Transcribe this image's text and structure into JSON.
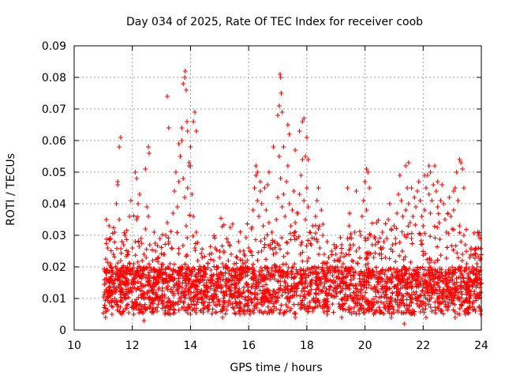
{
  "chart_data": {
    "type": "scatter",
    "title": "Day 034 of 2025, Rate Of TEC Index for receiver coob",
    "xlabel": "GPS time / hours",
    "ylabel": "ROTI / TECUs",
    "xlim": [
      10,
      24
    ],
    "ylim": [
      0,
      0.09
    ],
    "xticks": [
      10,
      12,
      14,
      16,
      18,
      20,
      22,
      24
    ],
    "xtick_labels": [
      "10",
      "12",
      "14",
      "16",
      "18",
      "20",
      "22",
      "24"
    ],
    "yticks": [
      0,
      0.01,
      0.02,
      0.03,
      0.04,
      0.05,
      0.06,
      0.07,
      0.08,
      0.09
    ],
    "ytick_labels": [
      "0",
      "0.01",
      "0.02",
      "0.03",
      "0.04",
      "0.05",
      "0.06",
      "0.07",
      "0.08",
      "0.09"
    ],
    "grid": true,
    "marker": "plus",
    "marker_color": "#ff0000",
    "series": [
      {
        "name": "ROTI",
        "color": "#ff0000",
        "x": [
          11.05,
          11.1,
          11.15,
          11.2,
          11.25,
          11.3,
          11.35,
          11.4,
          11.45,
          11.5,
          11.55,
          11.6,
          11.65,
          11.7,
          11.75,
          11.8,
          11.85,
          11.9,
          11.95,
          12.0,
          12.05,
          12.1,
          12.15,
          12.2,
          12.25,
          12.3,
          12.35,
          12.4,
          12.45,
          12.5,
          12.55,
          12.6,
          12.65,
          12.7,
          12.75,
          12.8,
          12.85,
          12.9,
          12.95,
          13.0,
          13.05,
          13.1,
          13.15,
          13.2,
          13.25,
          13.3,
          13.35,
          13.4,
          13.45,
          13.5,
          13.55,
          13.6,
          13.65,
          13.7,
          13.75,
          13.8,
          13.85,
          13.9,
          13.95,
          14.0,
          14.05,
          14.1,
          14.15,
          14.2,
          14.25,
          14.3,
          14.35,
          14.4,
          14.45,
          14.5,
          14.55,
          14.6,
          14.65,
          14.7,
          14.75,
          14.8,
          14.85,
          14.9,
          14.95,
          15.0,
          15.05,
          15.1,
          15.15,
          15.2,
          15.25,
          15.3,
          15.35,
          15.4,
          15.45,
          15.5,
          15.55,
          15.6,
          15.65,
          15.7,
          15.75,
          15.8,
          15.85,
          15.9,
          15.95,
          16.0,
          16.05,
          16.1,
          16.15,
          16.2,
          16.25,
          16.3,
          16.35,
          16.4,
          16.45,
          16.5,
          16.55,
          16.6,
          16.65,
          16.7,
          16.75,
          16.8,
          16.85,
          16.9,
          16.95,
          17.0,
          17.05,
          17.1,
          17.15,
          17.2,
          17.25,
          17.3,
          17.35,
          17.4,
          17.45,
          17.5,
          17.55,
          17.6,
          17.65,
          17.7,
          17.75,
          17.8,
          17.85,
          17.9,
          17.95,
          18.0,
          18.05,
          18.1,
          18.15,
          18.2,
          18.25,
          18.3,
          18.35,
          18.4,
          18.45,
          18.5,
          18.55,
          18.6,
          18.65,
          18.7,
          18.75,
          18.8,
          18.85,
          18.9,
          18.95,
          19.0,
          19.05,
          19.1,
          19.15,
          19.2,
          19.25,
          19.3,
          19.35,
          19.4,
          19.45,
          19.5,
          19.55,
          19.6,
          19.65,
          19.7,
          19.75,
          19.8,
          19.85,
          19.9,
          19.95,
          20.0,
          20.05,
          20.1,
          20.15,
          20.2,
          20.25,
          20.3,
          20.35,
          20.4,
          20.45,
          20.5,
          20.55,
          20.6,
          20.65,
          20.7,
          20.75,
          20.8,
          20.85,
          20.9,
          20.95,
          21.0,
          21.05,
          21.1,
          21.15,
          21.2,
          21.25,
          21.3,
          21.35,
          21.4,
          21.45,
          21.5,
          21.55,
          21.6,
          21.65,
          21.7,
          21.75,
          21.8,
          21.85,
          21.9,
          21.95,
          22.0,
          22.05,
          22.1,
          22.15,
          22.2,
          22.25,
          22.3,
          22.35,
          22.4,
          22.45,
          22.5,
          22.55,
          22.6,
          22.65,
          22.7,
          22.75,
          22.8,
          22.85,
          22.9,
          22.95,
          23.0,
          23.05,
          23.1,
          23.15,
          23.2,
          23.25,
          23.3,
          23.35,
          23.4,
          23.45,
          23.5,
          23.55,
          23.6,
          23.65,
          23.7,
          23.75,
          23.8,
          23.85,
          23.9,
          23.95,
          11.5,
          11.6,
          11.55,
          12.1,
          12.15,
          12.45,
          12.55,
          12.58,
          13.2,
          13.25,
          13.6,
          13.7,
          13.75,
          13.8,
          13.82,
          13.85,
          13.88,
          13.9,
          13.95,
          14.0,
          14.1,
          14.15,
          14.2,
          16.25,
          16.3,
          16.4,
          16.55,
          16.7,
          16.85,
          17.0,
          17.05,
          17.08,
          17.1,
          17.12,
          17.15,
          17.2,
          17.35,
          17.4,
          17.6,
          17.75,
          17.85,
          17.9,
          17.95,
          18.0,
          18.05,
          18.4,
          19.4,
          19.7,
          20.05,
          20.1,
          20.15,
          21.4,
          21.5,
          21.6,
          22.05,
          22.2,
          22.25,
          22.5,
          23.05,
          23.25,
          23.3,
          23.35,
          23.4,
          23.9,
          11.08,
          11.3,
          11.7,
          12.05,
          12.4,
          12.85,
          13.3,
          13.7,
          14.0,
          14.6,
          15.1,
          15.7,
          16.2,
          16.7,
          17.2,
          17.6,
          18.2,
          18.7,
          19.2,
          19.8,
          20.3,
          20.9,
          21.35,
          21.7,
          22.1,
          22.6,
          23.1,
          23.45,
          23.8,
          23.98
        ],
        "y": [
          0.012,
          0.018,
          0.026,
          0.033,
          0.021,
          0.015,
          0.024,
          0.031,
          0.04,
          0.046,
          0.035,
          0.022,
          0.017,
          0.027,
          0.03,
          0.019,
          0.024,
          0.036,
          0.041,
          0.026,
          0.021,
          0.028,
          0.035,
          0.04,
          0.043,
          0.029,
          0.018,
          0.024,
          0.032,
          0.039,
          0.036,
          0.027,
          0.019,
          0.022,
          0.031,
          0.025,
          0.017,
          0.023,
          0.029,
          0.02,
          0.016,
          0.024,
          0.03,
          0.034,
          0.028,
          0.021,
          0.026,
          0.037,
          0.044,
          0.05,
          0.039,
          0.047,
          0.055,
          0.06,
          0.048,
          0.042,
          0.033,
          0.045,
          0.052,
          0.058,
          0.043,
          0.036,
          0.026,
          0.031,
          0.022,
          0.019,
          0.017,
          0.023,
          0.02,
          0.018,
          0.015,
          0.021,
          0.024,
          0.019,
          0.016,
          0.022,
          0.026,
          0.02,
          0.017,
          0.023,
          0.018,
          0.021,
          0.025,
          0.02,
          0.016,
          0.022,
          0.027,
          0.024,
          0.019,
          0.021,
          0.018,
          0.023,
          0.028,
          0.025,
          0.019,
          0.021,
          0.024,
          0.02,
          0.022,
          0.026,
          0.025,
          0.032,
          0.038,
          0.045,
          0.049,
          0.041,
          0.036,
          0.044,
          0.04,
          0.033,
          0.029,
          0.038,
          0.046,
          0.034,
          0.027,
          0.031,
          0.024,
          0.028,
          0.035,
          0.042,
          0.055,
          0.048,
          0.039,
          0.043,
          0.036,
          0.047,
          0.052,
          0.04,
          0.033,
          0.038,
          0.044,
          0.034,
          0.029,
          0.037,
          0.043,
          0.049,
          0.054,
          0.041,
          0.035,
          0.045,
          0.039,
          0.031,
          0.027,
          0.033,
          0.029,
          0.036,
          0.041,
          0.032,
          0.026,
          0.038,
          0.03,
          0.024,
          0.021,
          0.028,
          0.023,
          0.02,
          0.025,
          0.019,
          0.022,
          0.024,
          0.02,
          0.018,
          0.023,
          0.027,
          0.021,
          0.019,
          0.024,
          0.029,
          0.033,
          0.026,
          0.022,
          0.027,
          0.031,
          0.025,
          0.021,
          0.026,
          0.03,
          0.036,
          0.041,
          0.047,
          0.038,
          0.029,
          0.024,
          0.03,
          0.027,
          0.023,
          0.029,
          0.034,
          0.028,
          0.024,
          0.026,
          0.031,
          0.028,
          0.023,
          0.029,
          0.035,
          0.04,
          0.032,
          0.027,
          0.033,
          0.029,
          0.037,
          0.043,
          0.049,
          0.041,
          0.036,
          0.03,
          0.038,
          0.045,
          0.04,
          0.034,
          0.029,
          0.036,
          0.042,
          0.039,
          0.044,
          0.047,
          0.041,
          0.036,
          0.033,
          0.038,
          0.045,
          0.049,
          0.043,
          0.037,
          0.041,
          0.046,
          0.052,
          0.044,
          0.039,
          0.034,
          0.041,
          0.046,
          0.04,
          0.035,
          0.031,
          0.037,
          0.042,
          0.036,
          0.032,
          0.038,
          0.045,
          0.05,
          0.041,
          0.033,
          0.028,
          0.024,
          0.03,
          0.027,
          0.021,
          0.017,
          0.023,
          0.026,
          0.02,
          0.018,
          0.024,
          0.021,
          0.026,
          0.029,
          0.047,
          0.061,
          0.058,
          0.05,
          0.048,
          0.051,
          0.058,
          0.056,
          0.074,
          0.064,
          0.059,
          0.064,
          0.078,
          0.08,
          0.082,
          0.076,
          0.066,
          0.063,
          0.053,
          0.052,
          0.066,
          0.069,
          0.063,
          0.052,
          0.05,
          0.047,
          0.045,
          0.05,
          0.058,
          0.068,
          0.071,
          0.081,
          0.08,
          0.075,
          0.069,
          0.058,
          0.065,
          0.062,
          0.057,
          0.063,
          0.066,
          0.067,
          0.055,
          0.061,
          0.054,
          0.045,
          0.045,
          0.044,
          0.051,
          0.05,
          0.045,
          0.052,
          0.053,
          0.045,
          0.049,
          0.052,
          0.05,
          0.047,
          0.044,
          0.054,
          0.053,
          0.051,
          0.045,
          0.03,
          0.004,
          0.005,
          0.006,
          0.005,
          0.003,
          0.006,
          0.005,
          0.007,
          0.005,
          0.006,
          0.004,
          0.005,
          0.007,
          0.006,
          0.005,
          0.004,
          0.006,
          0.005,
          0.004,
          0.006,
          0.005,
          0.004,
          0.002,
          0.005,
          0.004,
          0.006,
          0.004,
          0.005,
          0.006,
          0.005
        ]
      }
    ],
    "dense_band": {
      "x_start": 11.0,
      "x_end": 24.0,
      "typical_min": 0.005,
      "typical_max": 0.02,
      "note_count": 2600
    }
  }
}
